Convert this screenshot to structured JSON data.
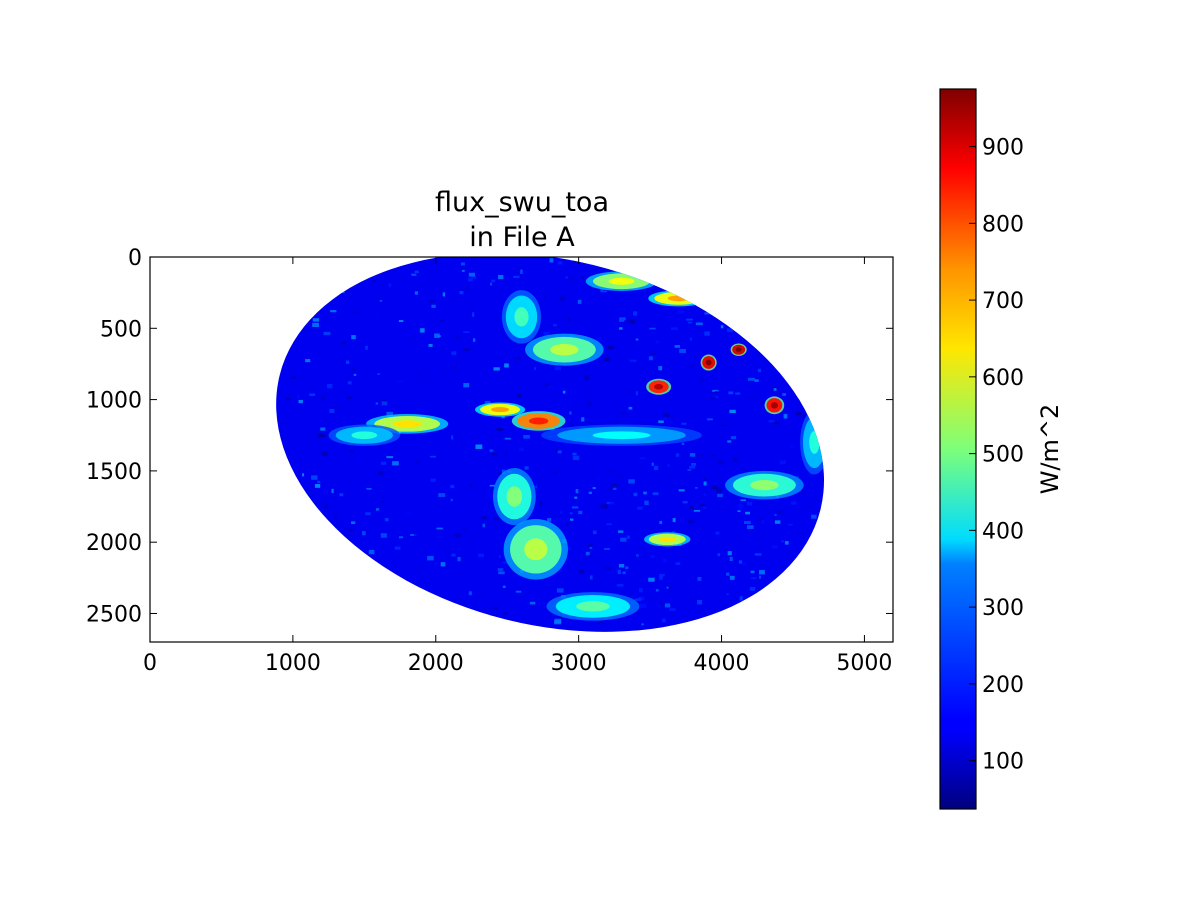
{
  "chart_data": {
    "type": "heatmap",
    "title": "flux_swu_toa\nin File A",
    "title_lines": [
      "flux_swu_toa",
      "in File A"
    ],
    "xlabel": "",
    "ylabel": "",
    "xlim": [
      0,
      5200
    ],
    "ylim": [
      2700,
      0
    ],
    "x_ticks": [
      0,
      1000,
      2000,
      3000,
      4000,
      5000
    ],
    "y_ticks": [
      0,
      500,
      1000,
      1500,
      2000,
      2500
    ],
    "colorbar": {
      "label": "W/m^2",
      "range": [
        37,
        975
      ],
      "ticks": [
        100,
        200,
        300,
        400,
        500,
        600,
        700,
        800,
        900
      ],
      "colormap": "jet"
    },
    "grid": false,
    "data_description_values": {
      "disk_center": [
        2800,
        1300
      ],
      "disk_semi_axes": [
        1950,
        1280
      ],
      "background_value": 140,
      "cloud_bands": [
        {
          "x": 1800,
          "y": 1170,
          "sx": 230,
          "sy": 55,
          "v": 560
        },
        {
          "x": 2450,
          "y": 1070,
          "sx": 140,
          "sy": 40,
          "v": 620
        },
        {
          "x": 2720,
          "y": 1150,
          "sx": 150,
          "sy": 55,
          "v": 740
        },
        {
          "x": 2550,
          "y": 1680,
          "sx": 120,
          "sy": 160,
          "v": 420
        },
        {
          "x": 2700,
          "y": 2050,
          "sx": 180,
          "sy": 170,
          "v": 470
        },
        {
          "x": 3100,
          "y": 2450,
          "sx": 260,
          "sy": 80,
          "v": 380
        },
        {
          "x": 2900,
          "y": 650,
          "sx": 220,
          "sy": 90,
          "v": 470
        },
        {
          "x": 2600,
          "y": 420,
          "sx": 110,
          "sy": 150,
          "v": 360
        },
        {
          "x": 3560,
          "y": 910,
          "sx": 70,
          "sy": 45,
          "v": 830
        },
        {
          "x": 3910,
          "y": 740,
          "sx": 45,
          "sy": 45,
          "v": 880
        },
        {
          "x": 4120,
          "y": 650,
          "sx": 45,
          "sy": 35,
          "v": 900
        },
        {
          "x": 4370,
          "y": 1040,
          "sx": 55,
          "sy": 50,
          "v": 850
        },
        {
          "x": 3700,
          "y": 290,
          "sx": 170,
          "sy": 45,
          "v": 620
        },
        {
          "x": 3300,
          "y": 170,
          "sx": 200,
          "sy": 55,
          "v": 520
        },
        {
          "x": 4300,
          "y": 1600,
          "sx": 220,
          "sy": 80,
          "v": 430
        },
        {
          "x": 3620,
          "y": 1980,
          "sx": 130,
          "sy": 40,
          "v": 560
        },
        {
          "x": 4650,
          "y": 1300,
          "sx": 80,
          "sy": 180,
          "v": 330
        },
        {
          "x": 1500,
          "y": 1250,
          "sx": 200,
          "sy": 60,
          "v": 330
        },
        {
          "x": 3300,
          "y": 1250,
          "sx": 450,
          "sy": 60,
          "v": 300
        }
      ]
    }
  }
}
